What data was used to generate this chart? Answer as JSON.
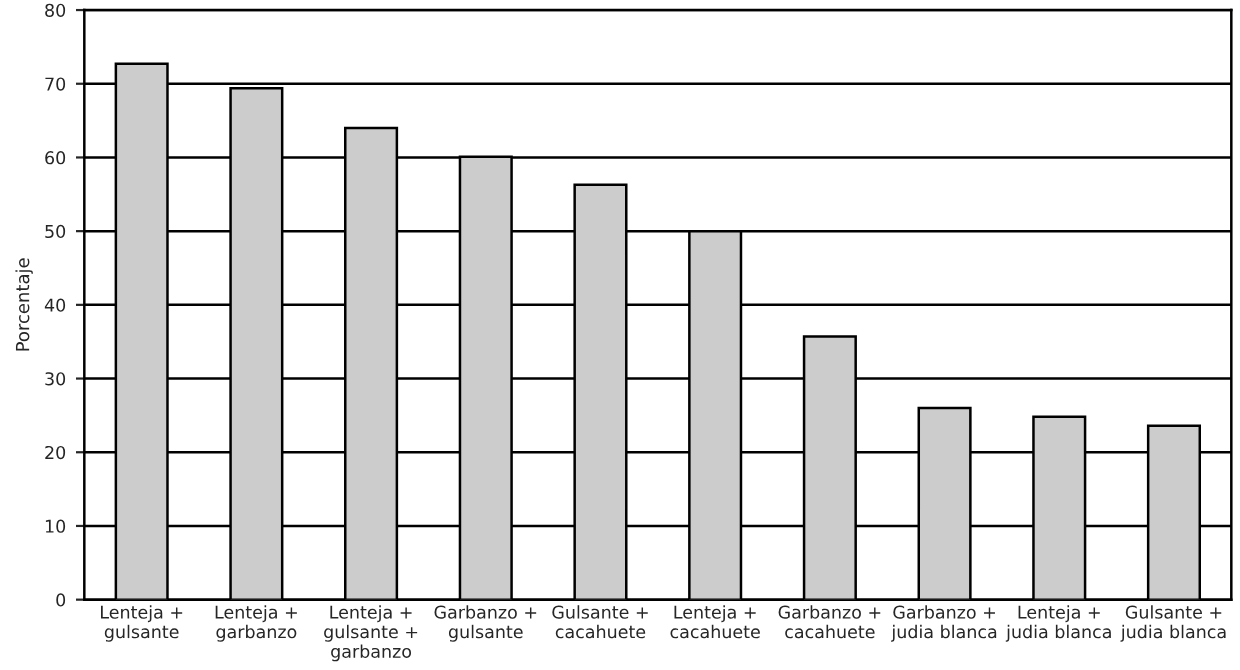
{
  "chart_data": {
    "type": "bar",
    "ylabel": "Porcentaje",
    "categories": [
      "Lenteja +\ngulsante",
      "Lenteja +\ngarbanzo",
      "Lenteja +\ngulsante +\ngarbanzo",
      "Garbanzo +\ngulsante",
      "Gulsante +\ncacahuete",
      "Lenteja +\ncacahuete",
      "Garbanzo +\ncacahuete",
      "Garbanzo +\njudia blanca",
      "Lenteja +\njudia blanca",
      "Gulsante +\njudia blanca"
    ],
    "values": [
      72.7,
      69.4,
      64,
      60.1,
      56.3,
      50,
      35.7,
      26,
      24.8,
      23.6
    ],
    "color": "#cccccc",
    "ylim": [
      0,
      80
    ],
    "yticks": [
      0,
      10,
      20,
      30,
      40,
      50,
      60,
      70,
      80
    ],
    "grid": "y"
  }
}
